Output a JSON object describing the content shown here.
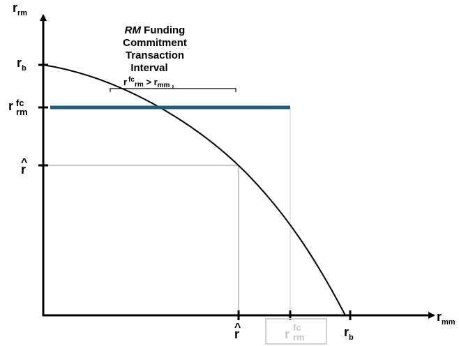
{
  "axes": {
    "y": {
      "main": "r",
      "sub": "rm"
    },
    "x": {
      "main": "r",
      "sub": "mm"
    }
  },
  "y_ticks": {
    "rb": {
      "main": "r",
      "sub": "b"
    },
    "rfc": {
      "main": "r",
      "sup": "fc",
      "sub": "rm"
    },
    "rhat": {
      "main": "r",
      "hat": "^"
    }
  },
  "x_ticks": {
    "rhat": {
      "main": "r",
      "hat": "^"
    },
    "rfc": {
      "main": "r",
      "sup": "fc",
      "sub": "rm"
    },
    "rb": {
      "main": "r",
      "sub": "b"
    }
  },
  "interval": {
    "title_italic": "RM",
    "title_line1_rest": " Funding",
    "title_line2": "Commitment",
    "title_line3": "Transaction",
    "title_line4": "Interval",
    "condition": {
      "r": "r",
      "sup": "fc",
      "sub1": "rm",
      "op": " > ",
      "r2": "r",
      "sub2": "mm"
    }
  },
  "colors": {
    "funding_line": "#1d5e7a",
    "curve": "#000000",
    "guide": "#c8c8c8",
    "axis": "#000000"
  }
}
